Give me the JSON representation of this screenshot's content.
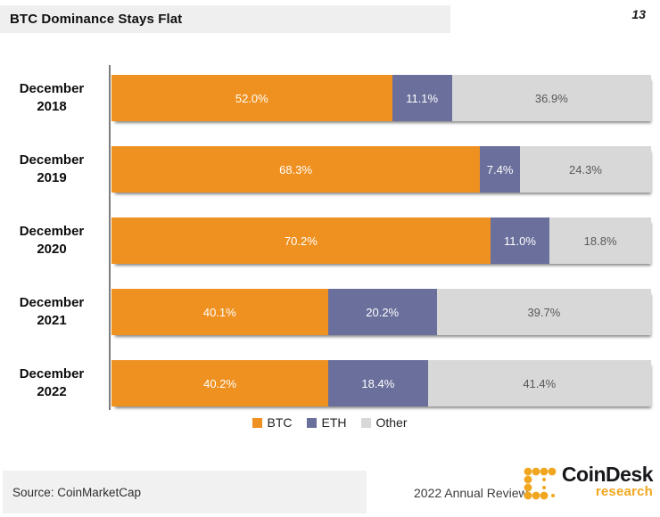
{
  "page": {
    "title": "BTC Dominance Stays Flat",
    "page_number": "13"
  },
  "chart_data": {
    "type": "bar",
    "orientation": "horizontal",
    "stacked": true,
    "title": "BTC Dominance Stays Flat",
    "categories": [
      "December 2018",
      "December 2019",
      "December 2020",
      "December 2021",
      "December 2022"
    ],
    "series": [
      {
        "name": "BTC",
        "color": "#EF9120",
        "label_color": "#FFFFFF",
        "values": [
          52.0,
          68.3,
          70.2,
          40.1,
          40.2
        ]
      },
      {
        "name": "ETH",
        "color": "#6A6F9C",
        "label_color": "#FFFFFF",
        "values": [
          11.1,
          7.4,
          11.0,
          20.2,
          18.4
        ]
      },
      {
        "name": "Other",
        "color": "#D8D8D8",
        "label_color": "#595959",
        "values": [
          36.9,
          24.3,
          18.8,
          39.7,
          41.4
        ]
      }
    ],
    "value_suffix": "%",
    "xlim": [
      0,
      100
    ],
    "grid": false,
    "legend_position": "bottom",
    "data_labels": true
  },
  "footer": {
    "source": "Source: CoinMarketCap",
    "review": "2022 Annual Review",
    "logo": {
      "brand": "CoinDesk",
      "sub": "research",
      "gold": "#F0A71F",
      "dark": "#17181C"
    }
  }
}
